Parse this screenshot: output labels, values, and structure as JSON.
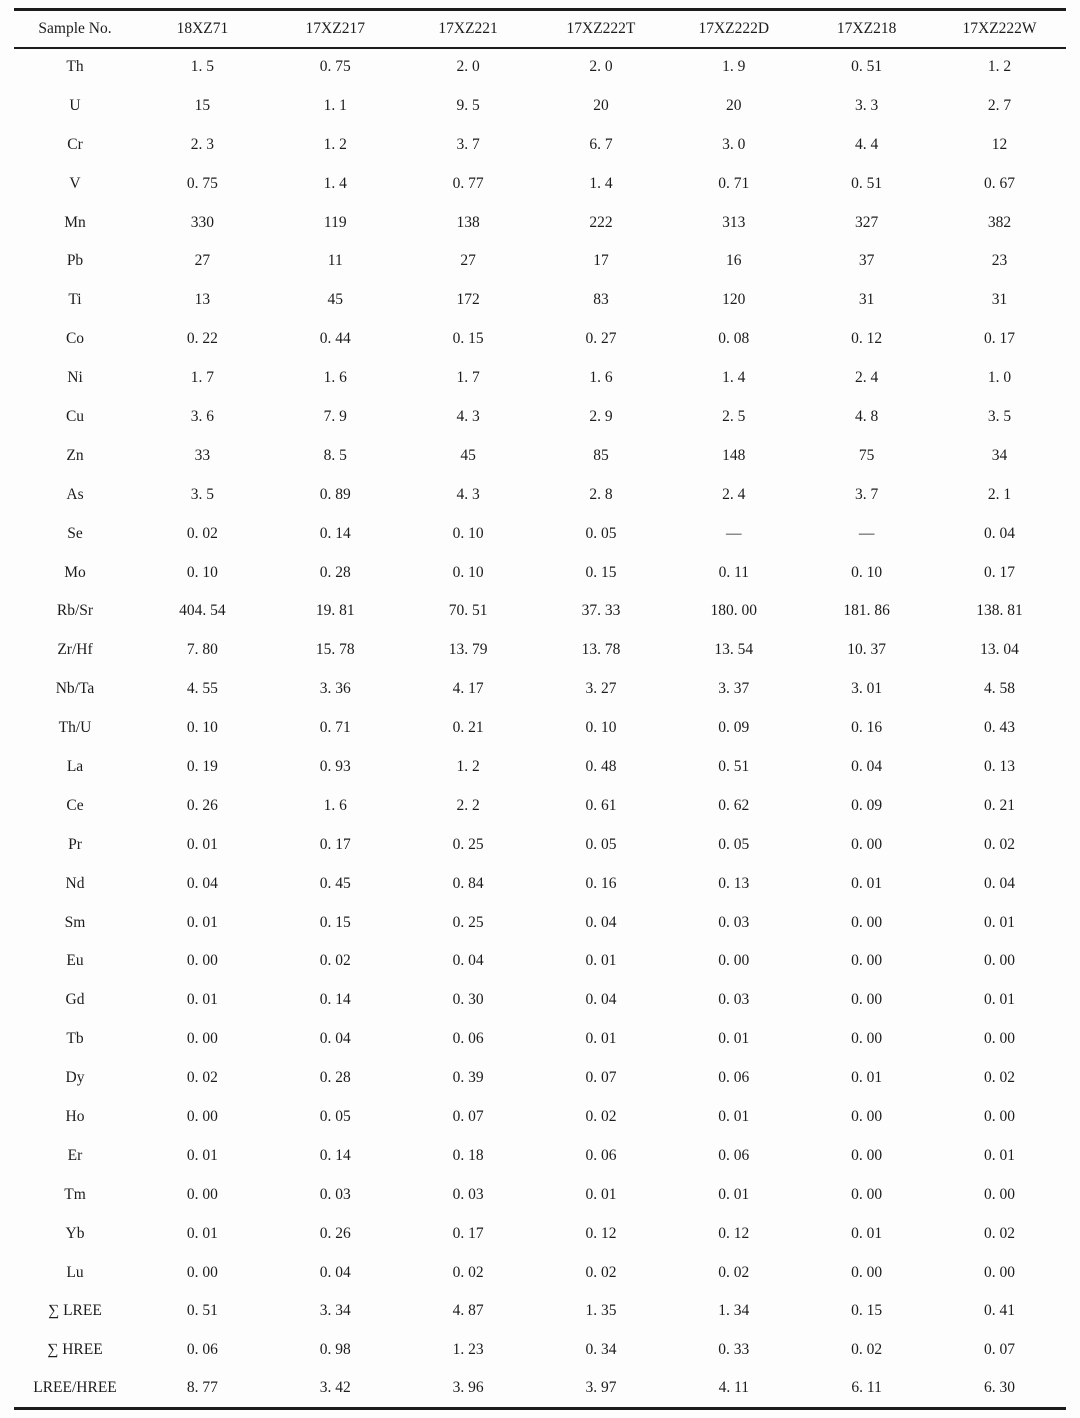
{
  "table": {
    "columns": [
      "Sample No.",
      "18XZ71",
      "17XZ217",
      "17XZ221",
      "17XZ222T",
      "17XZ222D",
      "17XZ218",
      "17XZ222W"
    ],
    "rows": [
      {
        "label": "Th",
        "values": [
          "1. 5",
          "0. 75",
          "2. 0",
          "2. 0",
          "1. 9",
          "0. 51",
          "1. 2"
        ]
      },
      {
        "label": "U",
        "values": [
          "15",
          "1. 1",
          "9. 5",
          "20",
          "20",
          "3. 3",
          "2. 7"
        ]
      },
      {
        "label": "Cr",
        "values": [
          "2. 3",
          "1. 2",
          "3. 7",
          "6. 7",
          "3. 0",
          "4. 4",
          "12"
        ]
      },
      {
        "label": "V",
        "values": [
          "0. 75",
          "1. 4",
          "0. 77",
          "1. 4",
          "0. 71",
          "0. 51",
          "0. 67"
        ]
      },
      {
        "label": "Mn",
        "values": [
          "330",
          "119",
          "138",
          "222",
          "313",
          "327",
          "382"
        ]
      },
      {
        "label": "Pb",
        "values": [
          "27",
          "11",
          "27",
          "17",
          "16",
          "37",
          "23"
        ]
      },
      {
        "label": "Ti",
        "values": [
          "13",
          "45",
          "172",
          "83",
          "120",
          "31",
          "31"
        ]
      },
      {
        "label": "Co",
        "values": [
          "0. 22",
          "0. 44",
          "0. 15",
          "0. 27",
          "0. 08",
          "0. 12",
          "0. 17"
        ]
      },
      {
        "label": "Ni",
        "values": [
          "1. 7",
          "1. 6",
          "1. 7",
          "1. 6",
          "1. 4",
          "2. 4",
          "1. 0"
        ]
      },
      {
        "label": "Cu",
        "values": [
          "3. 6",
          "7. 9",
          "4. 3",
          "2. 9",
          "2. 5",
          "4. 8",
          "3. 5"
        ]
      },
      {
        "label": "Zn",
        "values": [
          "33",
          "8. 5",
          "45",
          "85",
          "148",
          "75",
          "34"
        ]
      },
      {
        "label": "As",
        "values": [
          "3. 5",
          "0. 89",
          "4. 3",
          "2. 8",
          "2. 4",
          "3. 7",
          "2. 1"
        ]
      },
      {
        "label": "Se",
        "values": [
          "0. 02",
          "0. 14",
          "0. 10",
          "0. 05",
          "—",
          "—",
          "0. 04"
        ]
      },
      {
        "label": "Mo",
        "values": [
          "0. 10",
          "0. 28",
          "0. 10",
          "0. 15",
          "0. 11",
          "0. 10",
          "0. 17"
        ]
      },
      {
        "label": "Rb/Sr",
        "values": [
          "404. 54",
          "19. 81",
          "70. 51",
          "37. 33",
          "180. 00",
          "181. 86",
          "138. 81"
        ]
      },
      {
        "label": "Zr/Hf",
        "values": [
          "7. 80",
          "15. 78",
          "13. 79",
          "13. 78",
          "13. 54",
          "10. 37",
          "13. 04"
        ]
      },
      {
        "label": "Nb/Ta",
        "values": [
          "4. 55",
          "3. 36",
          "4. 17",
          "3. 27",
          "3. 37",
          "3. 01",
          "4. 58"
        ]
      },
      {
        "label": "Th/U",
        "values": [
          "0. 10",
          "0. 71",
          "0. 21",
          "0. 10",
          "0. 09",
          "0. 16",
          "0. 43"
        ]
      },
      {
        "label": "La",
        "values": [
          "0. 19",
          "0. 93",
          "1. 2",
          "0. 48",
          "0. 51",
          "0. 04",
          "0. 13"
        ]
      },
      {
        "label": "Ce",
        "values": [
          "0. 26",
          "1. 6",
          "2. 2",
          "0. 61",
          "0. 62",
          "0. 09",
          "0. 21"
        ]
      },
      {
        "label": "Pr",
        "values": [
          "0. 01",
          "0. 17",
          "0. 25",
          "0. 05",
          "0. 05",
          "0. 00",
          "0. 02"
        ]
      },
      {
        "label": "Nd",
        "values": [
          "0. 04",
          "0. 45",
          "0. 84",
          "0. 16",
          "0. 13",
          "0. 01",
          "0. 04"
        ]
      },
      {
        "label": "Sm",
        "values": [
          "0. 01",
          "0. 15",
          "0. 25",
          "0. 04",
          "0. 03",
          "0. 00",
          "0. 01"
        ]
      },
      {
        "label": "Eu",
        "values": [
          "0. 00",
          "0. 02",
          "0. 04",
          "0. 01",
          "0. 00",
          "0. 00",
          "0. 00"
        ]
      },
      {
        "label": "Gd",
        "values": [
          "0. 01",
          "0. 14",
          "0. 30",
          "0. 04",
          "0. 03",
          "0. 00",
          "0. 01"
        ]
      },
      {
        "label": "Tb",
        "values": [
          "0. 00",
          "0. 04",
          "0. 06",
          "0. 01",
          "0. 01",
          "0. 00",
          "0. 00"
        ]
      },
      {
        "label": "Dy",
        "values": [
          "0. 02",
          "0. 28",
          "0. 39",
          "0. 07",
          "0. 06",
          "0. 01",
          "0. 02"
        ]
      },
      {
        "label": "Ho",
        "values": [
          "0. 00",
          "0. 05",
          "0. 07",
          "0. 02",
          "0. 01",
          "0. 00",
          "0. 00"
        ]
      },
      {
        "label": "Er",
        "values": [
          "0. 01",
          "0. 14",
          "0. 18",
          "0. 06",
          "0. 06",
          "0. 00",
          "0. 01"
        ]
      },
      {
        "label": "Tm",
        "values": [
          "0. 00",
          "0. 03",
          "0. 03",
          "0. 01",
          "0. 01",
          "0. 00",
          "0. 00"
        ]
      },
      {
        "label": "Yb",
        "values": [
          "0. 01",
          "0. 26",
          "0. 17",
          "0. 12",
          "0. 12",
          "0. 01",
          "0. 02"
        ]
      },
      {
        "label": "Lu",
        "values": [
          "0. 00",
          "0. 04",
          "0. 02",
          "0. 02",
          "0. 02",
          "0. 00",
          "0. 00"
        ]
      },
      {
        "label": "∑ LREE",
        "values": [
          "0. 51",
          "3. 34",
          "4. 87",
          "1. 35",
          "1. 34",
          "0. 15",
          "0. 41"
        ]
      },
      {
        "label": "∑ HREE",
        "values": [
          "0. 06",
          "0. 98",
          "1. 23",
          "0. 34",
          "0. 33",
          "0. 02",
          "0. 07"
        ]
      },
      {
        "label": "LREE/HREE",
        "values": [
          "8. 77",
          "3. 42",
          "3. 96",
          "3. 97",
          "4. 11",
          "6. 11",
          "6. 30"
        ]
      }
    ]
  }
}
